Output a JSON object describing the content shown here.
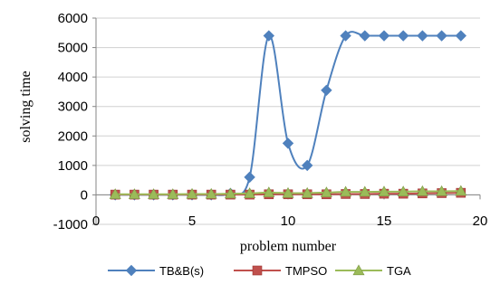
{
  "chart_data": {
    "type": "scatter",
    "title": "",
    "xlabel": "problem number",
    "ylabel": "solving time",
    "xlim": [
      0,
      20
    ],
    "ylim": [
      -1000,
      6000
    ],
    "xticks": [
      0,
      5,
      10,
      15,
      20
    ],
    "yticks": [
      -1000,
      0,
      1000,
      2000,
      3000,
      4000,
      5000,
      6000
    ],
    "grid": "horizontal",
    "legend_position": "bottom",
    "smoothed": true,
    "series": [
      {
        "name": "TB&B(s)",
        "color": "#4f81bd",
        "marker": "diamond",
        "x": [
          1,
          2,
          3,
          4,
          5,
          6,
          7,
          8,
          9,
          10,
          11,
          12,
          13,
          14,
          15,
          16,
          17,
          18,
          19
        ],
        "y": [
          0,
          0,
          0,
          0,
          0,
          0,
          50,
          600,
          5400,
          1750,
          1000,
          3550,
          5400,
          5400,
          5400,
          5400,
          5400,
          5400,
          5400
        ]
      },
      {
        "name": "TMPSO",
        "color": "#c0504d",
        "marker": "square",
        "x": [
          1,
          2,
          3,
          4,
          5,
          6,
          7,
          8,
          9,
          10,
          11,
          12,
          13,
          14,
          15,
          16,
          17,
          18,
          19
        ],
        "y": [
          10,
          10,
          10,
          10,
          10,
          10,
          10,
          10,
          20,
          20,
          20,
          20,
          30,
          30,
          40,
          40,
          50,
          60,
          70
        ]
      },
      {
        "name": "TGA",
        "color": "#9bbb59",
        "marker": "triangle",
        "x": [
          1,
          2,
          3,
          4,
          5,
          6,
          7,
          8,
          9,
          10,
          11,
          12,
          13,
          14,
          15,
          16,
          17,
          18,
          19
        ],
        "y": [
          20,
          20,
          20,
          20,
          30,
          30,
          40,
          50,
          80,
          60,
          60,
          80,
          100,
          100,
          110,
          110,
          120,
          120,
          130
        ]
      }
    ]
  }
}
